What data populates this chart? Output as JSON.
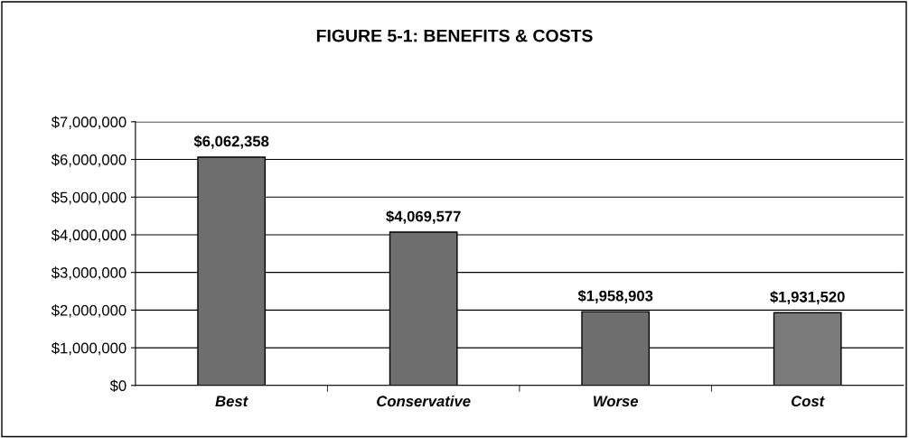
{
  "chart_data": {
    "type": "bar",
    "title": "FIGURE 5-1: BENEFITS & COSTS",
    "categories": [
      "Best",
      "Conservative",
      "Worse",
      "Cost"
    ],
    "values": [
      6062358,
      4069577,
      1958903,
      1931520
    ],
    "colors": [
      "#6e6e6e",
      "#6e6e6e",
      "#6e6e6e",
      "#7a7a7a"
    ],
    "value_labels": [
      "$6,062,358",
      "$4,069,577",
      "$1,958,903",
      "$1,931,520"
    ],
    "ylim": [
      0,
      7000000
    ],
    "yticks": [
      {
        "value": 0,
        "label": "$0"
      },
      {
        "value": 1000000,
        "label": "$1,000,000"
      },
      {
        "value": 2000000,
        "label": "$2,000,000"
      },
      {
        "value": 3000000,
        "label": "$3,000,000"
      },
      {
        "value": 4000000,
        "label": "$4,000,000"
      },
      {
        "value": 5000000,
        "label": "$5,000,000"
      },
      {
        "value": 6000000,
        "label": "$6,000,000"
      },
      {
        "value": 7000000,
        "label": "$7,000,000"
      }
    ],
    "grid": "y",
    "legend": false
  }
}
